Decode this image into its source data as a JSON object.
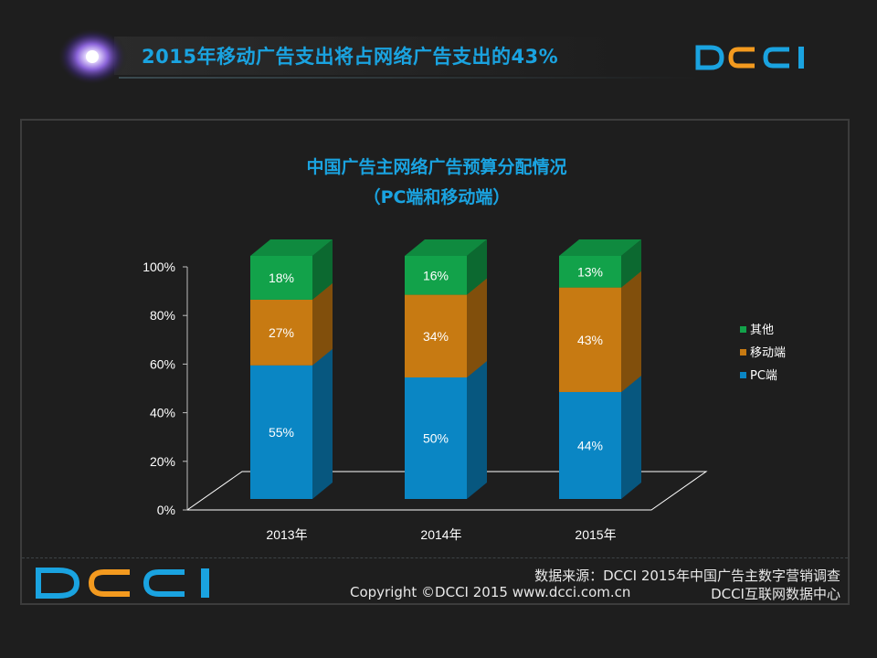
{
  "header": {
    "title": "2015年移动广告支出将占网络广告支出的43%"
  },
  "brand": {
    "logo_text": "DCCI"
  },
  "colors": {
    "accent_blue": "#1aa3e0",
    "accent_orange": "#f39a1f",
    "background": "#1e1e1e"
  },
  "footer": {
    "source": "数据来源：DCCI  2015年中国广告主数字营销调查",
    "copyright": "Copyright ©DCCI 2015 www.dcci.com.cn",
    "org": "DCCI互联网数据中心"
  },
  "chart_data": {
    "type": "bar",
    "stacked": true,
    "title": "中国广告主网络广告预算分配情况",
    "subtitle": "（PC端和移动端）",
    "categories": [
      "2013年",
      "2014年",
      "2015年"
    ],
    "series": [
      {
        "name": "PC端",
        "values": [
          55,
          50,
          44
        ],
        "color": "#0a86c4"
      },
      {
        "name": "移动端",
        "values": [
          27,
          34,
          43
        ],
        "color": "#c77a12"
      },
      {
        "name": "其他",
        "values": [
          18,
          16,
          13
        ],
        "color": "#12a24a"
      }
    ],
    "y_ticks": [
      "0%",
      "20%",
      "40%",
      "60%",
      "80%",
      "100%"
    ],
    "ylim": [
      0,
      100
    ],
    "grid": false,
    "legend_position": "right"
  }
}
